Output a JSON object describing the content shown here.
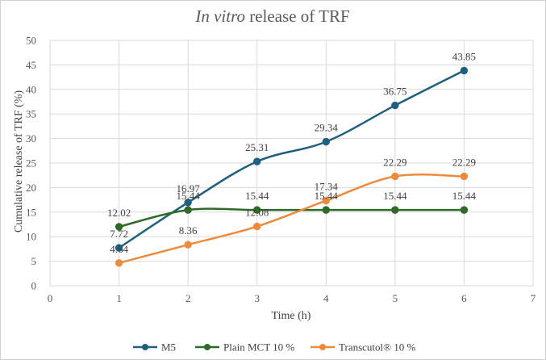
{
  "chart_data": {
    "type": "line",
    "title_italic": "In vitro",
    "title_rest": " release of TRF",
    "xlabel": "Time (h)",
    "ylabel": "Cumulative release of TRF (%)",
    "xlim": [
      0,
      7
    ],
    "ylim": [
      0,
      50
    ],
    "x_ticks": [
      "0",
      "1",
      "2",
      "3",
      "4",
      "5",
      "6",
      "7"
    ],
    "y_ticks": [
      "0",
      "5",
      "10",
      "15",
      "20",
      "25",
      "30",
      "35",
      "40",
      "45",
      "50"
    ],
    "grid": true,
    "legend_position": "bottom",
    "x": [
      1,
      2,
      3,
      4,
      5,
      6
    ],
    "series": [
      {
        "name": "M5",
        "color": "#1f5f7f",
        "values": [
          7.72,
          16.97,
          25.31,
          29.34,
          36.75,
          43.85
        ],
        "labels": [
          "7.72",
          "16.97",
          "25.31",
          "29.34",
          "36.75",
          "43.85"
        ]
      },
      {
        "name": "Plain MCT 10 %",
        "color": "#2e6b26",
        "values": [
          12.02,
          15.44,
          15.44,
          15.44,
          15.44,
          15.44
        ],
        "labels": [
          "12.02",
          "15.44",
          "15.44",
          "15.44",
          "15.44",
          "15.44"
        ]
      },
      {
        "name": "Transcutol® 10 %",
        "color": "#ed8a3c",
        "values": [
          4.64,
          8.36,
          12.08,
          17.34,
          22.29,
          22.29
        ],
        "labels": [
          "4.64",
          "8.36",
          "12.08",
          "17.34",
          "22.29",
          "22.29"
        ]
      }
    ]
  }
}
